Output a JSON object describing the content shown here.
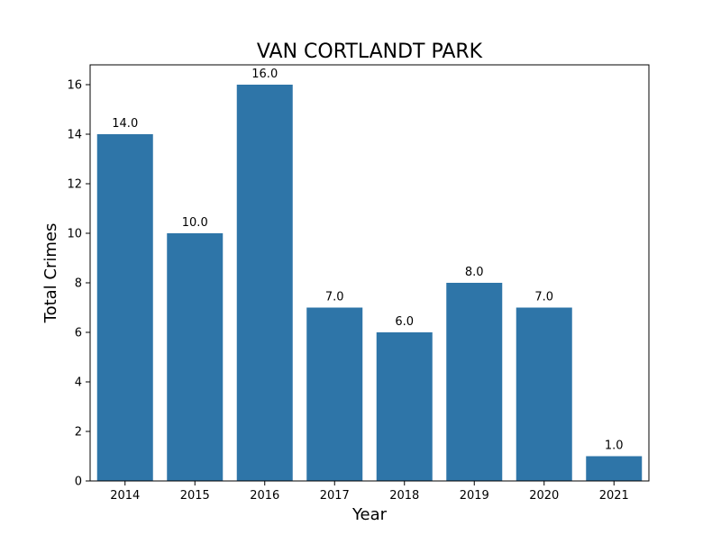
{
  "chart_data": {
    "type": "bar",
    "title": "VAN CORTLANDT PARK",
    "xlabel": "Year",
    "ylabel": "Total Crimes",
    "categories": [
      "2014",
      "2015",
      "2016",
      "2017",
      "2018",
      "2019",
      "2020",
      "2021"
    ],
    "values": [
      14,
      10,
      16,
      7,
      6,
      8,
      7,
      1
    ],
    "data_labels": [
      "14.0",
      "10.0",
      "16.0",
      "7.0",
      "6.0",
      "8.0",
      "7.0",
      "1.0"
    ],
    "ylim": [
      0,
      16.8
    ],
    "yticks": [
      0,
      2,
      4,
      6,
      8,
      10,
      12,
      14,
      16
    ],
    "ytick_labels": [
      "0",
      "2",
      "4",
      "6",
      "8",
      "10",
      "12",
      "14",
      "16"
    ],
    "grid": false,
    "legend": "none",
    "colors": {
      "bar": "#2e75a8",
      "axis": "#000000",
      "background": "#ffffff"
    }
  }
}
